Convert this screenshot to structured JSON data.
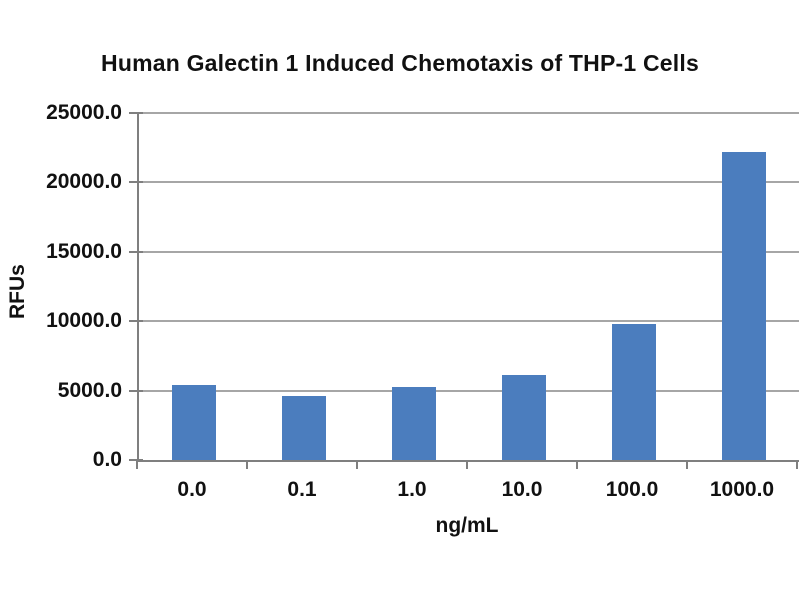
{
  "page": {
    "background_color": "#ffffff",
    "text_color": "#111111"
  },
  "chart_data": {
    "type": "bar",
    "title": "Human Galectin 1 Induced Chemotaxis of THP-1 Cells",
    "xlabel": "ng/mL",
    "ylabel": "RFUs",
    "categories": [
      "0.0",
      "0.1",
      "1.0",
      "10.0",
      "100.0",
      "1000.0"
    ],
    "values": [
      5400,
      4600,
      5250,
      6100,
      9800,
      22200
    ],
    "ylim": [
      0,
      25000
    ],
    "yticks": [
      0,
      5000,
      10000,
      15000,
      20000,
      25000
    ],
    "ytick_labels": [
      "0.0",
      "5000.0",
      "10000.0",
      "15000.0",
      "20000.0",
      "25000.0"
    ],
    "grid": true,
    "legend": false,
    "bar_color": "#4b7dbe",
    "gridline_color": "#a6a6a6",
    "axis_color": "#7f7f7f"
  }
}
